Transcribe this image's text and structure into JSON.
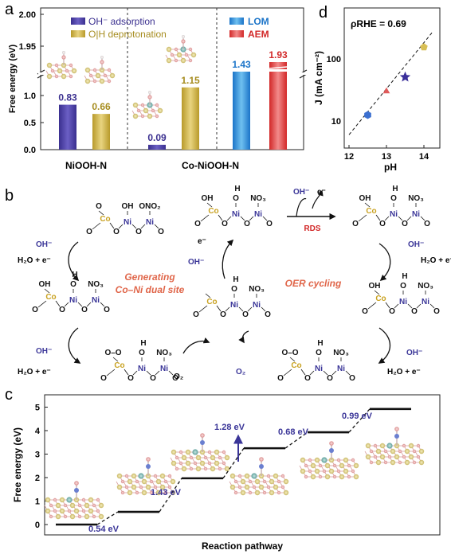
{
  "panel_a": {
    "label": "a",
    "ylabel": "Free energy (eV)",
    "legend": [
      "OH⁻ adsorption",
      "O|H deprotonation",
      "LOM",
      "AEM"
    ],
    "yticks": [
      "0.0",
      "0.5",
      "1.0",
      "1.95",
      "2.00"
    ],
    "groups": [
      "NiOOH-N",
      "Co-NiOOH-N"
    ],
    "colors": {
      "oh_adsorption": "#4b3fa0",
      "o_h_deprotonation": "#c9b24a",
      "lom": "#2f8fd8",
      "aem": "#e03a3a"
    }
  },
  "panel_d": {
    "label": "d",
    "annotation": "ρRHE = 0.69",
    "ylabel": "J (mA cm⁻²)",
    "xlabel": "pH",
    "xticks": [
      "12",
      "13",
      "14"
    ],
    "yticks": [
      "10",
      "100"
    ]
  },
  "panel_b": {
    "label": "b",
    "center_left": [
      "Generating",
      "Co–Ni dual site"
    ],
    "center_right": "OER cycling",
    "rds": "RDS",
    "species": {
      "oh": "OH⁻",
      "e": "e⁻",
      "h2o_e": "H₂O + e⁻",
      "o2": "O₂",
      "co": "Co",
      "ni": "Ni",
      "o": "O",
      "h": "H",
      "oh_grp": "OH",
      "no3": "NO₃",
      "ono2": "ONO₂"
    }
  },
  "panel_c": {
    "label": "c",
    "xlabel": "Reaction pathway",
    "ylabel": "Free energy (eV)",
    "yticks": [
      "0",
      "1",
      "2",
      "3",
      "4",
      "5"
    ]
  },
  "chart_data": [
    {
      "type": "bar",
      "panel": "a",
      "ylabel": "Free energy (eV)",
      "ylim_lower": [
        0,
        1.3
      ],
      "ylim_upper": [
        1.9,
        2.0
      ],
      "groups": [
        {
          "name": "NiOOH-N",
          "series": [
            {
              "name": "OH⁻ adsorption",
              "value": 0.83,
              "label": "0.83"
            },
            {
              "name": "O|H deprotonation",
              "value": 0.66,
              "label": "0.66"
            }
          ]
        },
        {
          "name": "Co-NiOOH-N",
          "series": [
            {
              "name": "OH⁻ adsorption",
              "value": 0.09,
              "label": "0.09"
            },
            {
              "name": "O|H deprotonation",
              "value": 1.15,
              "label": "1.15"
            },
            {
              "name": "LOM",
              "value": 1.43,
              "label": "1.43"
            },
            {
              "name": "AEM",
              "value": 1.93,
              "label": "1.93"
            }
          ]
        }
      ]
    },
    {
      "type": "scatter",
      "panel": "d",
      "xlabel": "pH",
      "ylabel": "J (mA cm⁻²)",
      "yscale": "log",
      "xlim": [
        12,
        14.25
      ],
      "ylim": [
        5,
        400
      ],
      "points": [
        {
          "x": 12.5,
          "y": 12.5
        },
        {
          "x": 13.0,
          "y": 30
        },
        {
          "x": 13.5,
          "y": 51
        },
        {
          "x": 14.0,
          "y": 155
        }
      ],
      "fit": {
        "x": [
          12.0,
          14.25
        ],
        "y": [
          6.0,
          280
        ],
        "style": "dashed"
      }
    },
    {
      "type": "line",
      "panel": "c",
      "xlabel": "Reaction pathway",
      "ylabel": "Free energy (eV)",
      "ylim": [
        -0.3,
        5.3
      ],
      "steps": [
        0,
        0.54,
        1.97,
        3.25,
        3.93,
        4.92
      ],
      "barriers": [
        {
          "label": "0.54 eV"
        },
        {
          "label": "1.43 eV"
        },
        {
          "label": "1.28 eV"
        },
        {
          "label": "0.68 eV"
        },
        {
          "label": "0.99 eV"
        }
      ]
    }
  ]
}
